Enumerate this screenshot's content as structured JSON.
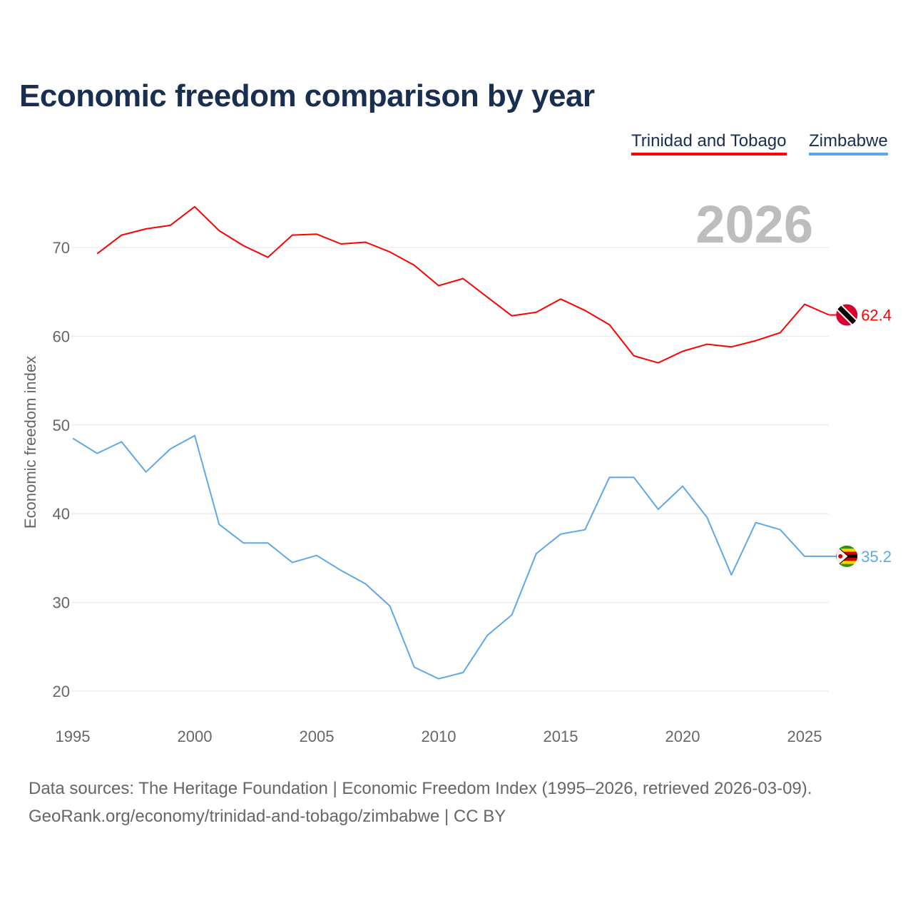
{
  "chart_data": {
    "type": "line",
    "title": "Economic freedom comparison by year",
    "xlabel": "",
    "ylabel": "Economic freedom index",
    "year_watermark": "2026",
    "xlim": [
      1995,
      2026
    ],
    "ylim": [
      16.5,
      77
    ],
    "x_ticks": [
      "1995",
      "2000",
      "2005",
      "2010",
      "2015",
      "2020",
      "2025"
    ],
    "y_ticks": [
      "20",
      "30",
      "40",
      "50",
      "60",
      "70"
    ],
    "grid": true,
    "legend_placement": "top-right",
    "series": [
      {
        "name": "Trinidad and Tobago",
        "color": "#ff0000",
        "end_label": "62.4",
        "flag": "trinidad-and-tobago-flag",
        "x": [
          1996,
          1997,
          1998,
          1999,
          2000,
          2001,
          2002,
          2003,
          2004,
          2005,
          2006,
          2007,
          2008,
          2009,
          2010,
          2011,
          2012,
          2013,
          2014,
          2015,
          2016,
          2017,
          2018,
          2019,
          2020,
          2021,
          2022,
          2023,
          2024,
          2025,
          2026
        ],
        "values": [
          69.3,
          71.4,
          72.1,
          72.5,
          74.6,
          71.9,
          70.2,
          68.9,
          71.4,
          71.5,
          70.4,
          70.6,
          69.5,
          68.0,
          65.7,
          66.5,
          64.4,
          62.3,
          62.7,
          64.2,
          62.9,
          61.3,
          57.8,
          57.0,
          58.3,
          59.1,
          58.8,
          59.5,
          60.4,
          63.6,
          62.4
        ]
      },
      {
        "name": "Zimbabwe",
        "color": "#5ea8ea",
        "end_label": "35.2",
        "flag": "zimbabwe-flag",
        "x": [
          1995,
          1996,
          1997,
          1998,
          1999,
          2000,
          2001,
          2002,
          2003,
          2004,
          2005,
          2006,
          2007,
          2008,
          2009,
          2010,
          2011,
          2012,
          2013,
          2014,
          2015,
          2016,
          2017,
          2018,
          2019,
          2020,
          2021,
          2022,
          2023,
          2024,
          2025,
          2026
        ],
        "values": [
          48.5,
          46.8,
          48.1,
          44.7,
          47.3,
          48.8,
          38.8,
          36.7,
          36.7,
          34.5,
          35.3,
          33.6,
          32.1,
          29.6,
          22.7,
          21.4,
          22.1,
          26.3,
          28.6,
          35.5,
          37.7,
          38.2,
          44.1,
          44.1,
          40.5,
          43.1,
          39.6,
          33.1,
          39.0,
          38.2,
          35.2,
          35.2
        ]
      }
    ]
  },
  "source_line1": "Data sources: The Heritage Foundation | Economic Freedom Index (1995–2026, retrieved 2026-03-09).",
  "source_line2": "GeoRank.org/economy/trinidad-and-tobago/zimbabwe | CC BY"
}
